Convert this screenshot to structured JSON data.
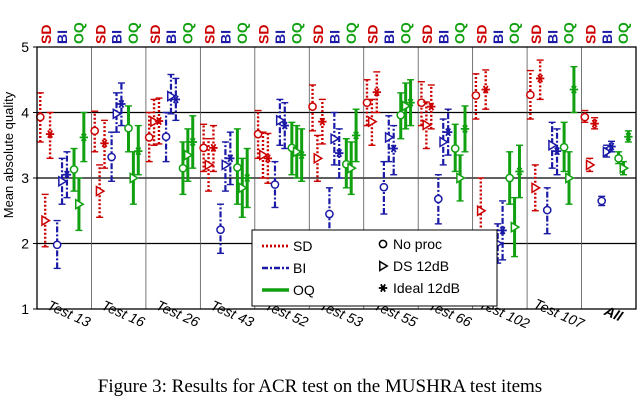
{
  "caption": "Figure 3: Results for ACR test on the MUSHRA test items",
  "chart_data": {
    "type": "errorbar",
    "title": "",
    "xlabel": "",
    "ylabel": "Mean absolute quality",
    "ylim": [
      1,
      5
    ],
    "yticks": [
      1,
      2,
      3,
      4,
      5
    ],
    "grid_y": [
      2,
      3,
      4
    ],
    "column_header": [
      "SD",
      "BI",
      "OQ"
    ],
    "categories": [
      "Test 13",
      "Test 16",
      "Test 26",
      "Test 43",
      "Test 52",
      "Test 53",
      "Test 55",
      "Test 66",
      "Test 102",
      "Test 107",
      "All"
    ],
    "highlight_category": "All",
    "conditions": [
      "No proc",
      "DS 12dB",
      "Ideal 12dB"
    ],
    "series": [
      {
        "name": "SD",
        "color": "#cc0000",
        "line": "dotted",
        "No proc": [
          {
            "mean": 3.93,
            "lo": 3.55,
            "hi": 4.3
          },
          {
            "mean": 3.72,
            "lo": 3.4,
            "hi": 4.02
          },
          {
            "mean": 3.62,
            "lo": 3.25,
            "hi": 4.0
          },
          {
            "mean": 3.46,
            "lo": 3.1,
            "hi": 3.82
          },
          {
            "mean": 3.67,
            "lo": 3.3,
            "hi": 4.03
          },
          {
            "mean": 4.09,
            "lo": 3.72,
            "hi": 4.42
          },
          {
            "mean": 4.15,
            "lo": 3.8,
            "hi": 4.5
          },
          {
            "mean": 4.15,
            "lo": 3.8,
            "hi": 4.47
          },
          {
            "mean": 4.26,
            "lo": 3.9,
            "hi": 4.59
          },
          {
            "mean": 4.27,
            "lo": 3.9,
            "hi": 4.64
          },
          {
            "mean": 3.93,
            "lo": 3.85,
            "hi": 4.03
          }
        ],
        "DS 12dB": [
          {
            "mean": 2.35,
            "lo": 1.95,
            "hi": 2.75
          },
          {
            "mean": 2.8,
            "lo": 2.4,
            "hi": 3.2
          },
          {
            "mean": 3.86,
            "lo": 3.5,
            "hi": 4.2
          },
          {
            "mean": 3.2,
            "lo": 2.8,
            "hi": 3.6
          },
          {
            "mean": 3.35,
            "lo": 3.0,
            "hi": 3.7
          },
          {
            "mean": 3.3,
            "lo": 2.95,
            "hi": 3.65
          },
          {
            "mean": 3.86,
            "lo": 3.5,
            "hi": 4.2
          },
          {
            "mean": 3.81,
            "lo": 3.45,
            "hi": 4.16
          },
          {
            "mean": 2.5,
            "lo": 2.0,
            "hi": 3.0
          },
          {
            "mean": 2.85,
            "lo": 2.5,
            "hi": 3.2
          },
          {
            "mean": 3.2,
            "lo": 3.1,
            "hi": 3.3
          }
        ],
        "Ideal 12dB": [
          {
            "mean": 3.67,
            "lo": 3.3,
            "hi": 4.0
          },
          {
            "mean": 3.53,
            "lo": 3.15,
            "hi": 3.88
          },
          {
            "mean": 3.87,
            "lo": 3.52,
            "hi": 4.22
          },
          {
            "mean": 3.46,
            "lo": 3.1,
            "hi": 3.8
          },
          {
            "mean": 3.3,
            "lo": 2.92,
            "hi": 3.68
          },
          {
            "mean": 3.86,
            "lo": 3.52,
            "hi": 4.2
          },
          {
            "mean": 4.31,
            "lo": 4.0,
            "hi": 4.62
          },
          {
            "mean": 4.09,
            "lo": 3.75,
            "hi": 4.42
          },
          {
            "mean": 4.35,
            "lo": 4.05,
            "hi": 4.65
          },
          {
            "mean": 4.52,
            "lo": 4.2,
            "hi": 4.8
          },
          {
            "mean": 3.83,
            "lo": 3.75,
            "hi": 3.92
          }
        ]
      },
      {
        "name": "BI",
        "color": "#1a1aa6",
        "line": "dashdot",
        "No proc": [
          {
            "mean": 1.98,
            "lo": 1.62,
            "hi": 2.35
          },
          {
            "mean": 3.32,
            "lo": 2.95,
            "hi": 3.7
          },
          {
            "mean": 3.63,
            "lo": 3.25,
            "hi": 4.0
          },
          {
            "mean": 2.21,
            "lo": 1.85,
            "hi": 2.6
          },
          {
            "mean": 2.9,
            "lo": 2.55,
            "hi": 3.25
          },
          {
            "mean": 2.45,
            "lo": 2.05,
            "hi": 2.85
          },
          {
            "mean": 2.86,
            "lo": 2.45,
            "hi": 3.25
          },
          {
            "mean": 2.68,
            "lo": 2.3,
            "hi": 3.05
          },
          {
            "mean": 1.9,
            "lo": 1.65,
            "hi": 2.2
          },
          {
            "mean": 2.51,
            "lo": 2.15,
            "hi": 2.85
          },
          {
            "mean": 2.65,
            "lo": 2.58,
            "hi": 2.72
          }
        ],
        "DS 12dB": [
          {
            "mean": 2.95,
            "lo": 2.6,
            "hi": 3.3
          },
          {
            "mean": 3.98,
            "lo": 3.7,
            "hi": 4.3
          },
          {
            "mean": 4.25,
            "lo": 3.98,
            "hi": 4.58
          },
          {
            "mean": 3.2,
            "lo": 2.8,
            "hi": 3.55
          },
          {
            "mean": 3.88,
            "lo": 3.5,
            "hi": 4.2
          },
          {
            "mean": 3.6,
            "lo": 3.2,
            "hi": 4.0
          },
          {
            "mean": 3.62,
            "lo": 3.25,
            "hi": 3.95
          },
          {
            "mean": 3.55,
            "lo": 3.2,
            "hi": 3.9
          },
          {
            "mean": 2.0,
            "lo": 1.7,
            "hi": 2.3
          },
          {
            "mean": 3.5,
            "lo": 3.15,
            "hi": 3.85
          },
          {
            "mean": 3.4,
            "lo": 3.32,
            "hi": 3.5
          }
        ],
        "Ideal 12dB": [
          {
            "mean": 3.05,
            "lo": 2.7,
            "hi": 3.4
          },
          {
            "mean": 4.13,
            "lo": 3.8,
            "hi": 4.45
          },
          {
            "mean": 4.2,
            "lo": 3.88,
            "hi": 4.52
          },
          {
            "mean": 3.3,
            "lo": 2.9,
            "hi": 3.7
          },
          {
            "mean": 3.8,
            "lo": 3.45,
            "hi": 4.15
          },
          {
            "mean": 3.38,
            "lo": 3.0,
            "hi": 3.75
          },
          {
            "mean": 3.45,
            "lo": 3.05,
            "hi": 3.8
          },
          {
            "mean": 3.7,
            "lo": 3.35,
            "hi": 4.05
          },
          {
            "mean": 2.2,
            "lo": 1.75,
            "hi": 2.65
          },
          {
            "mean": 3.41,
            "lo": 3.05,
            "hi": 3.75
          },
          {
            "mean": 3.48,
            "lo": 3.4,
            "hi": 3.56
          }
        ]
      },
      {
        "name": "OQ",
        "color": "#10a010",
        "line": "solid",
        "No proc": [
          {
            "mean": 3.13,
            "lo": 2.8,
            "hi": 3.45
          },
          {
            "mean": 3.76,
            "lo": 3.4,
            "hi": 4.1
          },
          {
            "mean": 3.15,
            "lo": 2.75,
            "hi": 3.55
          },
          {
            "mean": 3.16,
            "lo": 2.6,
            "hi": 3.75
          },
          {
            "mean": 3.46,
            "lo": 3.05,
            "hi": 3.85
          },
          {
            "mean": 3.21,
            "lo": 2.85,
            "hi": 3.6
          },
          {
            "mean": 3.96,
            "lo": 3.6,
            "hi": 4.3
          },
          {
            "mean": 3.45,
            "lo": 3.1,
            "hi": 3.82
          },
          {
            "mean": 3.0,
            "lo": 2.6,
            "hi": 3.4
          },
          {
            "mean": 3.47,
            "lo": 3.1,
            "hi": 3.85
          },
          {
            "mean": 3.3,
            "lo": 3.22,
            "hi": 3.4
          }
        ],
        "DS 12dB": [
          {
            "mean": 2.6,
            "lo": 2.2,
            "hi": 3.0
          },
          {
            "mean": 3.0,
            "lo": 2.6,
            "hi": 3.4
          },
          {
            "mean": 3.35,
            "lo": 2.95,
            "hi": 3.75
          },
          {
            "mean": 2.85,
            "lo": 2.4,
            "hi": 3.3
          },
          {
            "mean": 3.4,
            "lo": 3.0,
            "hi": 3.8
          },
          {
            "mean": 3.15,
            "lo": 2.75,
            "hi": 3.55
          },
          {
            "mean": 4.1,
            "lo": 3.75,
            "hi": 4.45
          },
          {
            "mean": 3.0,
            "lo": 2.65,
            "hi": 3.35
          },
          {
            "mean": 2.25,
            "lo": 1.8,
            "hi": 2.7
          },
          {
            "mean": 3.0,
            "lo": 2.6,
            "hi": 3.4
          },
          {
            "mean": 3.15,
            "lo": 3.05,
            "hi": 3.25
          }
        ],
        "Ideal 12dB": [
          {
            "mean": 3.62,
            "lo": 3.25,
            "hi": 4.0
          },
          {
            "mean": 3.41,
            "lo": 3.05,
            "hi": 3.8
          },
          {
            "mean": 3.55,
            "lo": 3.15,
            "hi": 3.95
          },
          {
            "mean": 3.0,
            "lo": 2.55,
            "hi": 3.45
          },
          {
            "mean": 3.35,
            "lo": 2.95,
            "hi": 3.75
          },
          {
            "mean": 3.65,
            "lo": 3.25,
            "hi": 4.05
          },
          {
            "mean": 4.15,
            "lo": 3.8,
            "hi": 4.5
          },
          {
            "mean": 3.75,
            "lo": 3.4,
            "hi": 4.1
          },
          {
            "mean": 3.1,
            "lo": 2.7,
            "hi": 3.5
          },
          {
            "mean": 4.35,
            "lo": 4.0,
            "hi": 4.7
          },
          {
            "mean": 3.63,
            "lo": 3.55,
            "hi": 3.72
          }
        ]
      }
    ],
    "legend": {
      "lines": [
        {
          "label": "SD",
          "color": "#cc0000",
          "line": "dotted"
        },
        {
          "label": "BI",
          "color": "#1a1aa6",
          "line": "dashdot"
        },
        {
          "label": "OQ",
          "color": "#10a010",
          "line": "solid"
        }
      ],
      "markers": [
        {
          "label": "No proc",
          "marker": "circle"
        },
        {
          "label": "DS 12dB",
          "marker": "triangle"
        },
        {
          "label": "Ideal 12dB",
          "marker": "star"
        }
      ]
    }
  }
}
